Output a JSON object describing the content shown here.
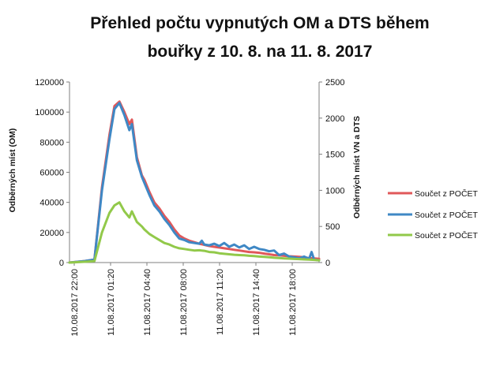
{
  "colors": {
    "series1": "#e0585a",
    "series2": "#3f88c5",
    "series3": "#92c94a",
    "axis": "#7f7f7f"
  },
  "chart_data": {
    "type": "line",
    "title_lines": [
      "Přehled počtu vypnutých OM a DTS během",
      "bouřky z 10. 8. na 11. 8. 2017"
    ],
    "ylabel_left": "Odběrných míst (OM)",
    "ylabel_right": "Odběrných míst VN a DTS",
    "ylim_left": [
      0,
      120000
    ],
    "yticks_left": [
      "0",
      "20000",
      "40000",
      "60000",
      "80000",
      "100000",
      "120000"
    ],
    "ylim_right": [
      0,
      2500
    ],
    "yticks_right": [
      "0",
      "500",
      "1000",
      "1500",
      "2000",
      "2500"
    ],
    "xticks": [
      "10.08.2017 22:00",
      "11.08.2017 01:20",
      "11.08.2017 04:40",
      "11.08.2017 08:00",
      "11.08.2017 11:20",
      "11.08.2017 14:40",
      "11.08.2017 18:00"
    ],
    "series": [
      {
        "name": "Součet z POČET",
        "axis": "left",
        "x": [
          0,
          0.06,
          0.1,
          0.13,
          0.16,
          0.18,
          0.2,
          0.22,
          0.24,
          0.25,
          0.27,
          0.29,
          0.3,
          0.32,
          0.34,
          0.36,
          0.38,
          0.4,
          0.42,
          0.44,
          0.46,
          0.48,
          0.5,
          0.52,
          0.54,
          0.56,
          0.58,
          0.6,
          0.62,
          0.64,
          0.66,
          0.68,
          0.7,
          0.72,
          0.74,
          0.76,
          0.78,
          0.8,
          0.82,
          0.84,
          0.86,
          0.88,
          0.9,
          0.92,
          0.94,
          0.96,
          0.98,
          1.0
        ],
        "values": [
          0,
          1000,
          2000,
          50000,
          85000,
          104000,
          107000,
          100000,
          92000,
          95000,
          70000,
          58000,
          55000,
          47000,
          40000,
          36000,
          31000,
          27000,
          22000,
          18000,
          16000,
          14500,
          13500,
          12500,
          11800,
          11000,
          10500,
          10000,
          9500,
          9000,
          8500,
          8000,
          7500,
          7000,
          6800,
          6500,
          6000,
          5500,
          5000,
          4800,
          4500,
          4200,
          4000,
          3800,
          3500,
          3000,
          2800,
          2500
        ]
      },
      {
        "name": "Součet z POČET",
        "axis": "left",
        "x": [
          0,
          0.06,
          0.1,
          0.13,
          0.16,
          0.18,
          0.2,
          0.22,
          0.24,
          0.25,
          0.27,
          0.29,
          0.3,
          0.32,
          0.34,
          0.36,
          0.38,
          0.4,
          0.42,
          0.44,
          0.46,
          0.48,
          0.5,
          0.52,
          0.53,
          0.54,
          0.56,
          0.58,
          0.6,
          0.62,
          0.64,
          0.66,
          0.68,
          0.7,
          0.72,
          0.74,
          0.76,
          0.78,
          0.8,
          0.82,
          0.84,
          0.86,
          0.88,
          0.9,
          0.92,
          0.94,
          0.96,
          0.97,
          0.98,
          1.0
        ],
        "values": [
          0,
          1000,
          2000,
          48000,
          82000,
          102000,
          106000,
          98000,
          88000,
          92000,
          68000,
          57000,
          53000,
          45000,
          38000,
          34000,
          29000,
          25000,
          20000,
          16000,
          15000,
          13500,
          13000,
          12500,
          14500,
          12000,
          11500,
          12500,
          11000,
          13000,
          10500,
          12000,
          10000,
          11500,
          9000,
          10500,
          9000,
          8500,
          7500,
          8000,
          5000,
          6000,
          4000,
          3500,
          2800,
          4000,
          2500,
          7000,
          2000,
          1500
        ]
      },
      {
        "name": "Součet z POČET",
        "axis": "left",
        "x": [
          0,
          0.06,
          0.1,
          0.13,
          0.16,
          0.18,
          0.2,
          0.22,
          0.24,
          0.25,
          0.27,
          0.29,
          0.3,
          0.32,
          0.34,
          0.36,
          0.38,
          0.4,
          0.42,
          0.44,
          0.46,
          0.48,
          0.5,
          0.52,
          0.54,
          0.56,
          0.58,
          0.6,
          0.62,
          0.64,
          0.66,
          0.68,
          0.7,
          0.72,
          0.74,
          0.76,
          0.78,
          0.8,
          0.82,
          0.84,
          0.86,
          0.88,
          0.9,
          0.92,
          0.94,
          0.96,
          0.98,
          1.0
        ],
        "values": [
          0,
          500,
          1000,
          20000,
          33000,
          38000,
          40000,
          34000,
          30000,
          34000,
          27000,
          24000,
          22000,
          19000,
          17000,
          15000,
          13000,
          12000,
          10500,
          9500,
          9000,
          8500,
          8000,
          8200,
          7800,
          7000,
          6800,
          6200,
          5800,
          5500,
          5200,
          5000,
          4800,
          4500,
          4300,
          4000,
          3800,
          3500,
          3200,
          3000,
          2800,
          2600,
          2400,
          2300,
          2100,
          2000,
          1800,
          1500
        ]
      }
    ],
    "legend_position": "right",
    "grid": false
  }
}
